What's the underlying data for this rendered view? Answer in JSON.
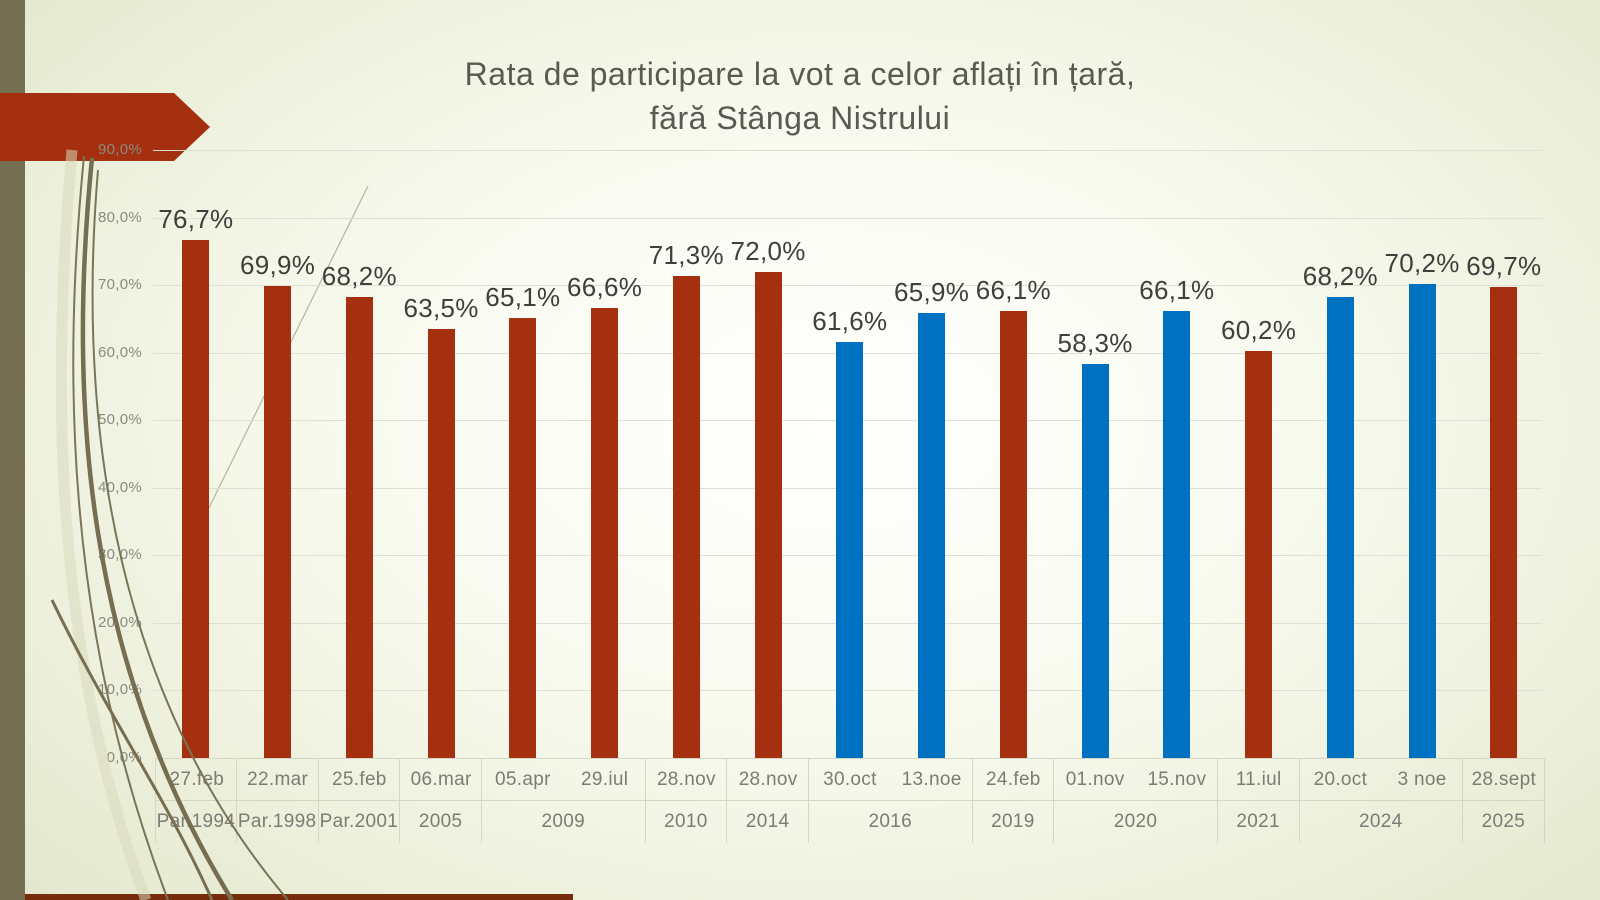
{
  "slide": {
    "title_line1": "Rata de participare la vot a celor aflați în țară,",
    "title_line2": "fără Stânga Nistrului"
  },
  "colors": {
    "red": "#A5300F",
    "blue": "#0070C0",
    "olive": "#767053",
    "maroon": "#772C0C",
    "gridline": "#DDE0D2",
    "table_border": "#D3D7C3",
    "title_text": "#595A52",
    "value_text": "#3F3F3C",
    "axis_text": "#7C7C74",
    "tick_text": "#8A8A80"
  },
  "chart_data": {
    "type": "bar",
    "title": "Rata de participare la vot a celor aflați în țară, fără Stânga Nistrului",
    "xlabel": "",
    "ylabel": "",
    "ylim": [
      0,
      90
    ],
    "ytick_step": 10,
    "ytick_labels": [
      "0,0%",
      "10,0%",
      "20,0%",
      "30,0%",
      "40,0%",
      "50,0%",
      "60,0%",
      "70,0%",
      "80,0%",
      "90,0%"
    ],
    "grid": true,
    "legend_position": "none",
    "bars": [
      {
        "date": "27.feb",
        "year": "Par.1994",
        "value": 76.7,
        "label": "76,7%",
        "color": "red"
      },
      {
        "date": "22.mar",
        "year": "Par.1998",
        "value": 69.9,
        "label": "69,9%",
        "color": "red"
      },
      {
        "date": "25.feb",
        "year": "Par.2001",
        "value": 68.2,
        "label": "68,2%",
        "color": "red"
      },
      {
        "date": "06.mar",
        "year": "2005",
        "value": 63.5,
        "label": "63,5%",
        "color": "red"
      },
      {
        "date": "05.apr",
        "year": "2009",
        "value": 65.1,
        "label": "65,1%",
        "color": "red"
      },
      {
        "date": "29.iul",
        "year": "2009",
        "value": 66.6,
        "label": "66,6%",
        "color": "red"
      },
      {
        "date": "28.nov",
        "year": "2010",
        "value": 71.3,
        "label": "71,3%",
        "color": "red"
      },
      {
        "date": "28.nov",
        "year": "2014",
        "value": 72.0,
        "label": "72,0%",
        "color": "red"
      },
      {
        "date": "30.oct",
        "year": "2016",
        "value": 61.6,
        "label": "61,6%",
        "color": "blue"
      },
      {
        "date": "13.noe",
        "year": "2016",
        "value": 65.9,
        "label": "65,9%",
        "color": "blue"
      },
      {
        "date": "24.feb",
        "year": "2019",
        "value": 66.1,
        "label": "66,1%",
        "color": "red"
      },
      {
        "date": "01.nov",
        "year": "2020",
        "value": 58.3,
        "label": "58,3%",
        "color": "blue"
      },
      {
        "date": "15.nov",
        "year": "2020",
        "value": 66.1,
        "label": "66,1%",
        "color": "blue"
      },
      {
        "date": "11.iul",
        "year": "2021",
        "value": 60.2,
        "label": "60,2%",
        "color": "red"
      },
      {
        "date": "20.oct",
        "year": "2024",
        "value": 68.2,
        "label": "68,2%",
        "color": "blue"
      },
      {
        "date": "3 noe",
        "year": "2024",
        "value": 70.2,
        "label": "70,2%",
        "color": "blue"
      },
      {
        "date": "28.sept",
        "year": "2025",
        "value": 69.7,
        "label": "69,7%",
        "color": "red"
      }
    ]
  }
}
